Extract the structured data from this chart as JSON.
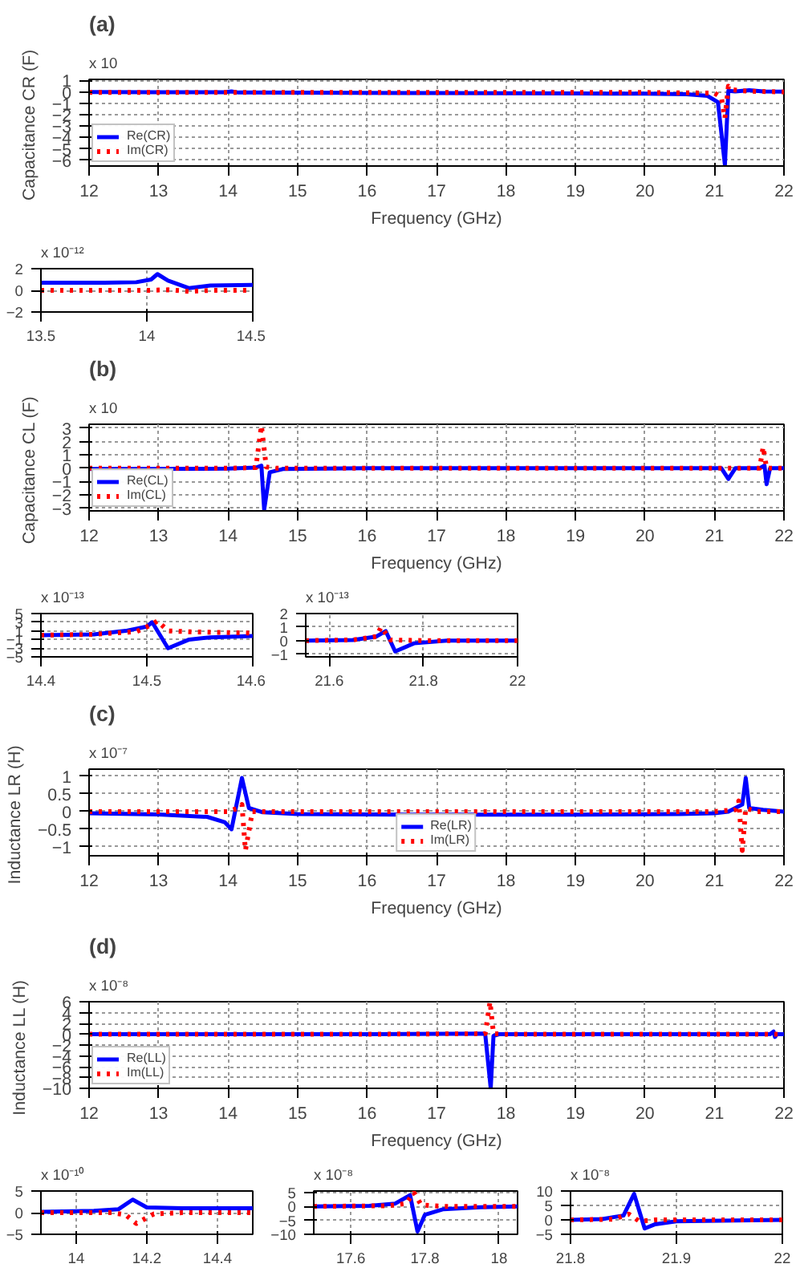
{
  "chart_data": [
    {
      "type": "line",
      "title": "(a)",
      "xlabel": "Frequency (GHz)",
      "ylabel": "Capacitance  CR (F)",
      "annotations": [
        "x 10"
      ],
      "xlim": [
        12,
        22
      ],
      "xticks": [
        12,
        13,
        14,
        15,
        16,
        17,
        18,
        19,
        20,
        21,
        22
      ],
      "ylim": [
        -6.5,
        1.1
      ],
      "yticks": [
        1,
        0,
        -1,
        -2,
        -3,
        -4,
        -5,
        -6
      ],
      "grid": true,
      "legend": "bottom left",
      "series": [
        {
          "name": "Re(CR)",
          "color": "#0000ff",
          "line_style": "solid",
          "x": [
            12,
            13,
            13.95,
            14.05,
            14.15,
            15,
            17,
            19,
            20,
            20.6,
            20.9,
            21.05,
            21.15,
            21.2,
            21.3,
            21.5,
            21.7,
            22
          ],
          "values": [
            0,
            -0.02,
            -0.03,
            0.05,
            -0.05,
            -0.06,
            -0.1,
            -0.13,
            -0.15,
            -0.2,
            -0.35,
            -0.9,
            -6.4,
            0.1,
            0.05,
            0.15,
            0.05,
            0.02
          ]
        },
        {
          "name": "Im(CR)",
          "color": "#ff0000",
          "line_style": "dotted",
          "x": [
            12,
            14,
            16,
            18,
            20,
            21,
            21.1,
            21.15,
            21.2,
            21.25,
            21.4,
            21.6,
            22
          ],
          "values": [
            -0.05,
            -0.05,
            -0.05,
            -0.05,
            -0.05,
            -0.1,
            -0.5,
            -2.3,
            0.5,
            0.2,
            0.1,
            0.05,
            0
          ]
        }
      ]
    },
    {
      "type": "line",
      "annotations": [
        "x 10⁻¹²"
      ],
      "xlim": [
        13.5,
        14.5
      ],
      "xticks": [
        13.5,
        14,
        14.5
      ],
      "ylim": [
        -2,
        2
      ],
      "yticks": [
        2,
        0,
        -2
      ],
      "grid": true,
      "series": [
        {
          "color": "#0000ff",
          "line_style": "solid",
          "x": [
            13.5,
            13.8,
            13.95,
            14.02,
            14.05,
            14.1,
            14.2,
            14.3,
            14.5
          ],
          "values": [
            0.7,
            0.7,
            0.75,
            1.0,
            1.5,
            0.9,
            0.2,
            0.45,
            0.5
          ]
        },
        {
          "color": "#ff0000",
          "line_style": "dotted",
          "x": [
            13.5,
            14,
            14.1,
            14.2,
            14.3,
            14.5
          ],
          "values": [
            0,
            0,
            0.05,
            -0.1,
            0,
            0
          ]
        }
      ]
    },
    {
      "type": "line",
      "title": "(b)",
      "xlabel": "Frequency (GHz)",
      "ylabel": "Capacitance  CL (F)",
      "annotations": [
        "x 10"
      ],
      "xlim": [
        12,
        22
      ],
      "xticks": [
        12,
        13,
        14,
        15,
        16,
        17,
        18,
        19,
        20,
        21,
        22
      ],
      "ylim": [
        -3.2,
        3.3
      ],
      "yticks": [
        3,
        2,
        1,
        0,
        -1,
        -2,
        -3
      ],
      "grid": true,
      "legend": "bottom left",
      "series": [
        {
          "name": "Re(CL)",
          "color": "#0000ff",
          "line_style": "solid",
          "x": [
            12,
            14,
            14.4,
            14.48,
            14.52,
            14.6,
            14.8,
            16,
            18,
            21.1,
            21.2,
            21.3,
            21.65,
            21.72,
            21.75,
            21.8,
            22
          ],
          "values": [
            -0.05,
            -0.03,
            0.05,
            0.2,
            -3.1,
            -0.3,
            -0.05,
            0,
            0,
            0,
            -0.8,
            0,
            0,
            0.2,
            -1.2,
            0,
            0
          ]
        },
        {
          "name": "Im(CL)",
          "color": "#ff0000",
          "line_style": "dotted",
          "x": [
            12,
            14,
            14.4,
            14.48,
            14.55,
            14.7,
            16,
            18,
            21,
            21.65,
            21.7,
            21.75,
            22
          ],
          "values": [
            0,
            0,
            0.05,
            3.2,
            0.1,
            0,
            0,
            0,
            0,
            0,
            1.6,
            0,
            0
          ]
        }
      ]
    },
    {
      "type": "line",
      "annotations": [
        "x 10⁻¹³"
      ],
      "xlim": [
        14.4,
        14.6
      ],
      "xticks": [
        14.4,
        14.5,
        14.6
      ],
      "ylim": [
        -5,
        5
      ],
      "yticks": [
        5,
        3,
        1,
        -1,
        -3,
        -5
      ],
      "grid": true,
      "series": [
        {
          "color": "#0000ff",
          "line_style": "solid",
          "x": [
            14.4,
            14.45,
            14.48,
            14.5,
            14.505,
            14.52,
            14.54,
            14.56,
            14.6
          ],
          "values": [
            0,
            0.2,
            1,
            2,
            3,
            -3,
            -1,
            -0.5,
            -0.2
          ]
        },
        {
          "color": "#ff0000",
          "line_style": "dotted",
          "x": [
            14.4,
            14.45,
            14.49,
            14.505,
            14.51,
            14.52,
            14.54,
            14.6
          ],
          "values": [
            0,
            0.2,
            0.8,
            2.5,
            3.3,
            1,
            0.8,
            0.5
          ]
        }
      ]
    },
    {
      "type": "line",
      "annotations": [
        "x 10⁻¹³"
      ],
      "xlim": [
        21.55,
        22
      ],
      "xticks": [
        21.6,
        21.8,
        22
      ],
      "ylim": [
        -1.2,
        2
      ],
      "yticks": [
        2,
        1,
        0,
        -1
      ],
      "grid": true,
      "series": [
        {
          "color": "#0000ff",
          "line_style": "solid",
          "x": [
            21.55,
            21.65,
            21.7,
            21.72,
            21.74,
            21.78,
            21.85,
            22
          ],
          "values": [
            0,
            0.05,
            0.3,
            0.7,
            -0.8,
            -0.2,
            0,
            0
          ]
        },
        {
          "color": "#ff0000",
          "line_style": "dotted",
          "x": [
            21.55,
            21.65,
            21.7,
            21.71,
            21.73,
            21.8,
            22
          ],
          "values": [
            0,
            0.05,
            0.3,
            1.0,
            0.05,
            0,
            0
          ]
        }
      ]
    },
    {
      "type": "line",
      "title": "(c)",
      "xlabel": "Frequency (GHz)",
      "ylabel": "Inductance  LR (H)",
      "annotations": [
        "x 10⁻⁷"
      ],
      "xlim": [
        12,
        22
      ],
      "xticks": [
        12,
        13,
        14,
        15,
        16,
        17,
        18,
        19,
        20,
        21,
        22
      ],
      "ylim": [
        -1.25,
        1.2
      ],
      "yticks": [
        1,
        0.5,
        0,
        -0.5,
        -1
      ],
      "grid": true,
      "legend": "bottom",
      "series": [
        {
          "name": "Re(LR)",
          "color": "#0000ff",
          "line_style": "solid",
          "x": [
            12,
            13,
            13.7,
            13.95,
            14.05,
            14.2,
            14.3,
            14.5,
            15,
            17,
            19,
            20.5,
            21,
            21.2,
            21.4,
            21.45,
            21.5,
            21.7,
            22
          ],
          "values": [
            -0.05,
            -0.08,
            -0.15,
            -0.3,
            -0.5,
            0.95,
            0.1,
            -0.02,
            -0.07,
            -0.09,
            -0.09,
            -0.07,
            -0.05,
            0,
            0.2,
            0.95,
            0.1,
            0.05,
            0
          ]
        },
        {
          "name": "Im(LR)",
          "color": "#ff0000",
          "line_style": "dotted",
          "x": [
            12,
            13,
            14,
            14.15,
            14.2,
            14.25,
            14.35,
            15,
            18,
            21,
            21.3,
            21.35,
            21.4,
            21.45,
            21.6,
            22
          ],
          "values": [
            0,
            0,
            0,
            0.1,
            0.2,
            -1.1,
            0,
            0,
            0,
            0,
            0.05,
            0.3,
            -1.1,
            0.1,
            0,
            0
          ]
        }
      ]
    },
    {
      "type": "line",
      "title": "(d)",
      "xlabel": "Frequency (GHz)",
      "ylabel": "Inductance  LL (H)",
      "annotations": [
        "x 10⁻⁸"
      ],
      "xlim": [
        12,
        22
      ],
      "xticks": [
        12,
        13,
        14,
        15,
        16,
        17,
        18,
        19,
        20,
        21,
        22
      ],
      "ylim": [
        -10,
        6
      ],
      "yticks": [
        6,
        4,
        2,
        0,
        -2,
        -4,
        -6,
        -8,
        -10
      ],
      "grid": true,
      "legend": "bottom left",
      "series": [
        {
          "name": "Re(LL)",
          "color": "#0000ff",
          "line_style": "solid",
          "x": [
            12,
            14,
            16,
            17.7,
            17.78,
            17.82,
            17.9,
            19,
            21.8,
            21.85,
            21.87,
            21.9,
            22
          ],
          "values": [
            0,
            0,
            0,
            0.1,
            -10,
            -0.3,
            0,
            0,
            0,
            0.5,
            -0.5,
            0,
            0
          ]
        },
        {
          "name": "Im(LL)",
          "color": "#ff0000",
          "line_style": "dotted",
          "x": [
            12,
            14,
            16,
            17.7,
            17.77,
            17.82,
            18,
            20,
            22
          ],
          "values": [
            0,
            0,
            0,
            0.1,
            6,
            0.1,
            0,
            0,
            0
          ]
        }
      ]
    },
    {
      "type": "line",
      "annotations": [
        "x 10⁻¹⁰"
      ],
      "xlim": [
        13.9,
        14.5
      ],
      "xticks": [
        14,
        14.2,
        14.4
      ],
      "ylim": [
        -5,
        5
      ],
      "yticks": [
        5,
        0,
        -5
      ],
      "grid": true,
      "series": [
        {
          "color": "#0000ff",
          "line_style": "solid",
          "x": [
            13.9,
            14.05,
            14.12,
            14.16,
            14.2,
            14.3,
            14.5
          ],
          "values": [
            0.2,
            0.4,
            0.8,
            3,
            1.2,
            1,
            1
          ]
        },
        {
          "color": "#ff0000",
          "line_style": "dotted",
          "x": [
            13.9,
            14.1,
            14.14,
            14.17,
            14.22,
            14.3,
            14.5
          ],
          "values": [
            0,
            0,
            -0.5,
            -2.5,
            -0.3,
            0,
            0
          ]
        }
      ]
    },
    {
      "type": "line",
      "annotations": [
        "x 10⁻⁸"
      ],
      "xlim": [
        17.5,
        18.05
      ],
      "xticks": [
        17.6,
        17.8,
        18
      ],
      "ylim": [
        -10,
        5.5
      ],
      "yticks": [
        5,
        0,
        -5,
        -10
      ],
      "grid": true,
      "series": [
        {
          "color": "#0000ff",
          "line_style": "solid",
          "x": [
            17.5,
            17.65,
            17.72,
            17.76,
            17.78,
            17.8,
            17.85,
            17.95,
            18.05
          ],
          "values": [
            0,
            0.2,
            1,
            4,
            -9,
            -3,
            -1,
            -0.3,
            0
          ]
        },
        {
          "color": "#ff0000",
          "line_style": "dotted",
          "x": [
            17.5,
            17.7,
            17.75,
            17.77,
            17.79,
            17.85,
            18.05
          ],
          "values": [
            0,
            0.2,
            1,
            5,
            0.5,
            0,
            0
          ]
        }
      ]
    },
    {
      "type": "line",
      "annotations": [
        "x 10⁻⁸"
      ],
      "xlim": [
        21.8,
        22
      ],
      "xticks": [
        21.8,
        21.9,
        22
      ],
      "ylim": [
        -5,
        10
      ],
      "yticks": [
        10,
        5,
        0,
        -5
      ],
      "grid": true,
      "series": [
        {
          "color": "#0000ff",
          "line_style": "solid",
          "x": [
            21.8,
            21.83,
            21.85,
            21.86,
            21.87,
            21.88,
            21.9,
            22
          ],
          "values": [
            0,
            0.3,
            1.5,
            9,
            -3,
            -1.5,
            -0.5,
            0
          ]
        },
        {
          "color": "#ff0000",
          "line_style": "dotted",
          "x": [
            21.8,
            21.84,
            21.855,
            21.865,
            21.88,
            22
          ],
          "values": [
            0,
            0.2,
            2,
            -0.5,
            0,
            0
          ]
        }
      ]
    }
  ]
}
